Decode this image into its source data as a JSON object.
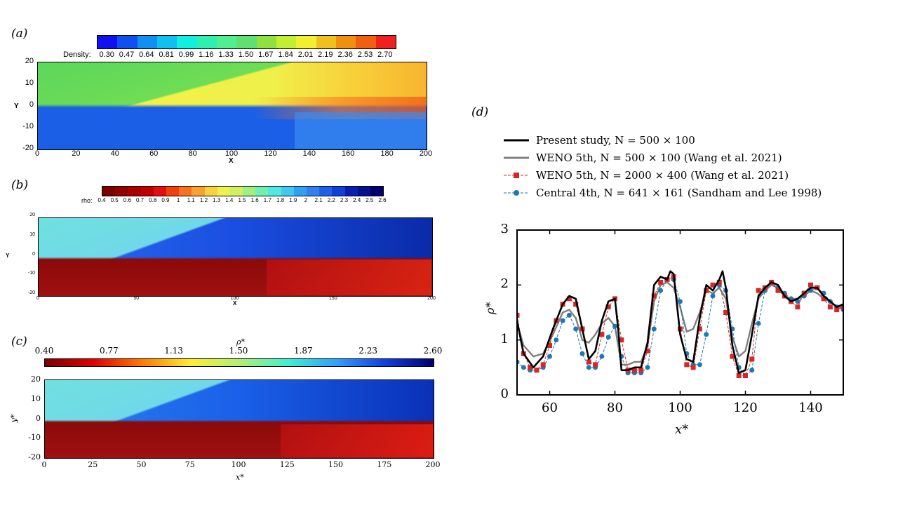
{
  "panels": {
    "a": {
      "label": "(a)",
      "colorbar_title": "Density:",
      "colorbar_ticks": [
        "0.30",
        "0.47",
        "0.64",
        "0.81",
        "0.99",
        "1.16",
        "1.33",
        "1.50",
        "1.67",
        "1.84",
        "2.01",
        "2.19",
        "2.36",
        "2.53",
        "2.70"
      ],
      "xticks": [
        "0",
        "20",
        "40",
        "60",
        "80",
        "100",
        "120",
        "140",
        "160",
        "180",
        "200"
      ],
      "yticks": [
        "20",
        "10",
        "0",
        "-10",
        "-20"
      ],
      "xlabel": "X",
      "ylabel": "Y"
    },
    "b": {
      "label": "(b)",
      "colorbar_title": "rho:",
      "colorbar_ticks": [
        "0.4",
        "0.5",
        "0.6",
        "0.7",
        "0.8",
        "0.9",
        "1",
        "1.1",
        "1.2",
        "1.3",
        "1.4",
        "1.5",
        "1.6",
        "1.7",
        "1.8",
        "1.9",
        "2",
        "2.1",
        "2.2",
        "2.3",
        "2.4",
        "2.5",
        "2.6"
      ],
      "xticks": [
        "0",
        "50",
        "100",
        "150",
        "200"
      ],
      "yticks": [
        "20",
        "10",
        "0",
        "-10",
        "-20"
      ],
      "xlabel": "X",
      "ylabel": "Y"
    },
    "c": {
      "label": "(c)",
      "colorbar_title": "ρ*",
      "colorbar_ticks": [
        "0.40",
        "0.77",
        "1.13",
        "1.50",
        "1.87",
        "2.23",
        "2.60"
      ],
      "xticks": [
        "0",
        "25",
        "50",
        "75",
        "100",
        "125",
        "150",
        "175",
        "200"
      ],
      "yticks": [
        "20",
        "10",
        "0",
        "-10",
        "-20"
      ],
      "xlabel": "x*",
      "ylabel": "y*"
    },
    "d": {
      "label": "(d)"
    }
  },
  "colors": {
    "black": "#000000",
    "gray": "#808080",
    "red": "#d62728",
    "blue": "#1f77b4"
  },
  "chart_data": {
    "type": "line",
    "xlabel": "x*",
    "ylabel": "ρ*",
    "xlim": [
      50,
      150
    ],
    "ylim": [
      0,
      3
    ],
    "xticks": [
      60,
      80,
      100,
      120,
      140
    ],
    "yticks": [
      0,
      1,
      2,
      3
    ],
    "legend_placement": "top (above plot)",
    "series": [
      {
        "name": "Present study, N = 500 × 100",
        "style": "solid-thick",
        "color": "#000000",
        "x": [
          50,
          52,
          55,
          58,
          61,
          64,
          66,
          68,
          70,
          72,
          74,
          76,
          78,
          80,
          81,
          82,
          84,
          86,
          88,
          90,
          92,
          94,
          96,
          97,
          98,
          100,
          102,
          104,
          106,
          108,
          110,
          112,
          113,
          114,
          116,
          118,
          120,
          122,
          124,
          126,
          128,
          130,
          132,
          134,
          136,
          138,
          140,
          142,
          144,
          146,
          148,
          150
        ],
        "y": [
          1.35,
          0.75,
          0.5,
          0.7,
          1.2,
          1.65,
          1.8,
          1.75,
          1.2,
          0.65,
          0.8,
          1.35,
          1.7,
          1.75,
          1.2,
          0.45,
          0.45,
          0.5,
          0.5,
          0.95,
          2.0,
          2.15,
          2.1,
          2.25,
          2.2,
          1.1,
          0.65,
          0.6,
          1.4,
          2.0,
          1.9,
          2.1,
          2.25,
          1.95,
          0.9,
          0.4,
          0.45,
          1.1,
          1.8,
          1.95,
          2.05,
          2.0,
          1.8,
          1.7,
          1.75,
          1.85,
          1.95,
          1.95,
          1.8,
          1.7,
          1.6,
          1.65
        ]
      },
      {
        "name": "WENO 5th, N = 500 × 100 (Wang et al. 2021)",
        "style": "solid-gray",
        "color": "#808080",
        "x": [
          50,
          52,
          55,
          58,
          61,
          64,
          66,
          68,
          70,
          72,
          74,
          76,
          78,
          80,
          82,
          84,
          86,
          88,
          90,
          92,
          94,
          96,
          98,
          100,
          102,
          104,
          106,
          108,
          110,
          112,
          114,
          116,
          118,
          120,
          122,
          124,
          126,
          128,
          130,
          132,
          134,
          136,
          138,
          140,
          142,
          144,
          146,
          148,
          150
        ],
        "y": [
          1.3,
          0.9,
          0.7,
          0.75,
          1.1,
          1.5,
          1.55,
          1.4,
          1.0,
          0.95,
          1.1,
          1.3,
          1.4,
          1.25,
          0.55,
          0.55,
          0.6,
          0.6,
          0.9,
          1.7,
          2.0,
          2.05,
          1.95,
          1.6,
          1.15,
          1.2,
          1.5,
          1.9,
          1.85,
          1.95,
          1.75,
          1.05,
          0.7,
          0.8,
          1.3,
          1.75,
          1.9,
          2.0,
          1.95,
          1.8,
          1.75,
          1.75,
          1.8,
          1.9,
          1.85,
          1.75,
          1.7,
          1.6,
          1.6
        ]
      },
      {
        "name": "WENO 5th, N = 2000 × 400 (Wang et al. 2021)",
        "style": "dashed-square",
        "color": "#d62728",
        "x": [
          50,
          52,
          54,
          56,
          58,
          60,
          62,
          64,
          66,
          68,
          70,
          72,
          74,
          76,
          78,
          80,
          82,
          84,
          86,
          88,
          90,
          92,
          94,
          96,
          98,
          100,
          102,
          104,
          106,
          108,
          110,
          112,
          114,
          116,
          118,
          120,
          122,
          124,
          126,
          128,
          130,
          132,
          134,
          136,
          138,
          140,
          142,
          144,
          146,
          148,
          150
        ],
        "y": [
          1.45,
          0.75,
          0.5,
          0.45,
          0.55,
          0.9,
          1.35,
          1.65,
          1.75,
          1.65,
          1.2,
          0.6,
          0.55,
          1.1,
          1.6,
          1.75,
          1.0,
          0.45,
          0.45,
          0.45,
          0.8,
          1.8,
          2.05,
          2.1,
          2.15,
          1.2,
          0.55,
          0.5,
          1.2,
          1.9,
          2.0,
          2.05,
          1.5,
          0.7,
          0.35,
          0.35,
          0.65,
          1.9,
          1.95,
          2.05,
          1.9,
          1.8,
          1.7,
          1.6,
          1.85,
          2.0,
          1.95,
          1.75,
          1.6,
          1.55,
          1.6
        ]
      },
      {
        "name": "Central 4th, N = 641 × 161 (Sandham and Lee 1998)",
        "style": "dashed-circle",
        "color": "#1f77b4",
        "x": [
          50,
          52,
          54,
          56,
          58,
          60,
          62,
          64,
          66,
          68,
          70,
          72,
          74,
          76,
          78,
          80,
          82,
          84,
          86,
          88,
          90,
          92,
          94,
          96,
          98,
          100,
          102,
          104,
          106,
          108,
          110,
          112,
          114,
          116,
          118,
          120,
          122,
          124,
          126,
          128,
          130,
          132,
          134,
          136,
          138,
          140,
          142,
          144,
          146,
          148,
          150
        ],
        "y": [
          0.6,
          0.5,
          0.45,
          0.45,
          0.5,
          0.7,
          1.0,
          1.35,
          1.45,
          1.2,
          0.75,
          0.5,
          0.5,
          0.7,
          1.05,
          1.25,
          0.7,
          0.4,
          0.4,
          0.4,
          0.5,
          1.2,
          1.9,
          2.1,
          2.1,
          1.7,
          0.75,
          0.55,
          0.55,
          1.1,
          1.8,
          2.0,
          1.9,
          1.2,
          0.5,
          0.35,
          0.45,
          1.3,
          1.9,
          2.05,
          1.95,
          1.85,
          1.75,
          1.7,
          1.8,
          1.9,
          1.95,
          1.85,
          1.7,
          1.6,
          1.55
        ]
      }
    ]
  }
}
